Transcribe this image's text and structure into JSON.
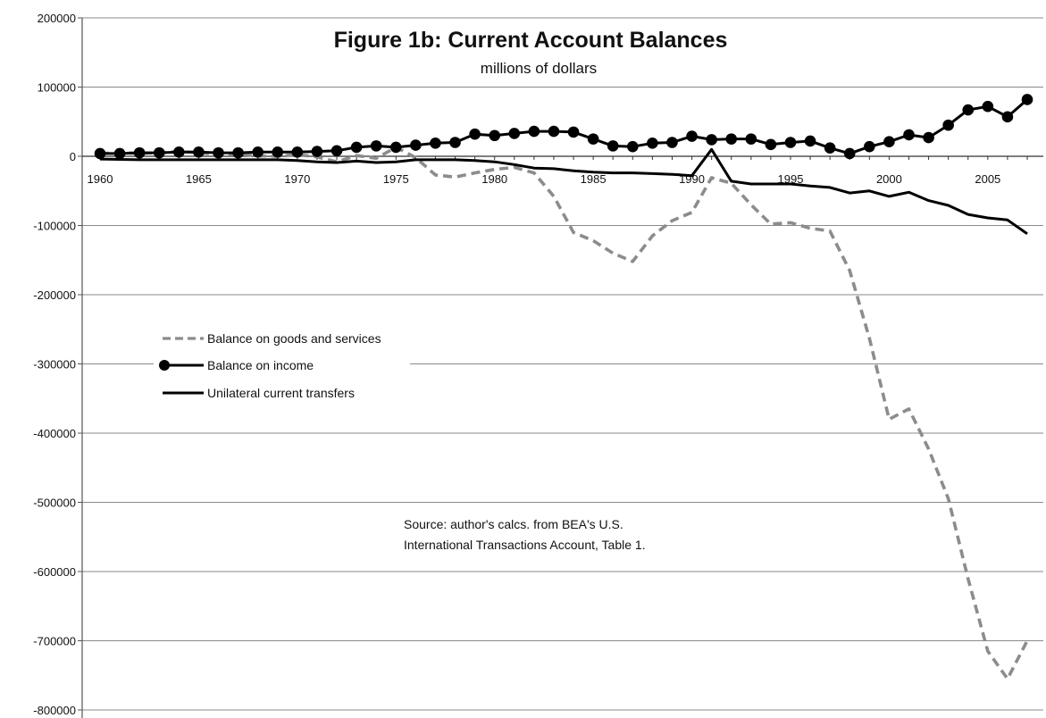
{
  "chart_data": {
    "type": "line",
    "title": "Figure 1b: Current Account Balances",
    "subtitle": "millions of dollars",
    "xlabel": "",
    "ylabel": "",
    "xlim": [
      1960,
      2007
    ],
    "ylim": [
      -800000,
      200000
    ],
    "yticks": [
      200000,
      100000,
      0,
      -100000,
      -200000,
      -300000,
      -400000,
      -500000,
      -600000,
      -700000,
      -800000
    ],
    "ytick_labels": [
      "200000",
      "100000",
      "0",
      "-100000",
      "-200000",
      "-300000",
      "-400000",
      "-500000",
      "-600000",
      "-700000",
      "-800000"
    ],
    "xticks": [
      1960,
      1965,
      1970,
      1975,
      1980,
      1985,
      1990,
      1995,
      2000,
      2005
    ],
    "xtick_labels": [
      "1960",
      "1965",
      "1970",
      "1975",
      "1980",
      "1985",
      "1990",
      "1995",
      "2000",
      "2005"
    ],
    "grid": "horizontal",
    "legend_position": "left-middle",
    "x": [
      1960,
      1961,
      1962,
      1963,
      1964,
      1965,
      1966,
      1967,
      1968,
      1969,
      1970,
      1971,
      1972,
      1973,
      1974,
      1975,
      1976,
      1977,
      1978,
      1979,
      1980,
      1981,
      1982,
      1983,
      1984,
      1985,
      1986,
      1987,
      1988,
      1989,
      1990,
      1991,
      1992,
      1993,
      1994,
      1995,
      1996,
      1997,
      1998,
      1999,
      2000,
      2001,
      2002,
      2003,
      2004,
      2005,
      2006,
      2007
    ],
    "series": [
      {
        "name": "Balance on goods and services",
        "style": "dashed",
        "color": "#8c8c8c",
        "markers": false,
        "values": [
          4000,
          5000,
          4500,
          5000,
          7000,
          5000,
          3000,
          3500,
          500,
          100,
          2500,
          -1000,
          -8000,
          1000,
          -3000,
          13000,
          -2000,
          -27000,
          -30000,
          -24000,
          -19000,
          -16000,
          -24000,
          -58000,
          -110000,
          -122000,
          -140000,
          -152000,
          -115000,
          -93000,
          -81000,
          -31000,
          -39000,
          -70000,
          -98000,
          -96000,
          -104000,
          -108000,
          -165000,
          -263000,
          -380000,
          -365000,
          -423000,
          -495000,
          -610000,
          -715000,
          -755000,
          -700000
        ]
      },
      {
        "name": "Balance on income",
        "style": "solid",
        "color": "#000000",
        "markers": true,
        "values": [
          4000,
          4000,
          5000,
          5000,
          6000,
          6000,
          5000,
          5000,
          6000,
          6000,
          6000,
          7000,
          8000,
          13000,
          15000,
          13000,
          16000,
          19000,
          20000,
          32000,
          30000,
          33000,
          36000,
          36000,
          35000,
          25000,
          15000,
          14000,
          19000,
          20000,
          29000,
          24000,
          25000,
          25000,
          17000,
          20000,
          22000,
          12000,
          4000,
          14000,
          21000,
          31000,
          27000,
          45000,
          67000,
          72000,
          57000,
          82000
        ]
      },
      {
        "name": "Unilateral current transfers",
        "style": "solid",
        "color": "#000000",
        "markers": false,
        "values": [
          -4000,
          -4500,
          -5000,
          -5000,
          -5000,
          -5000,
          -5000,
          -5000,
          -5000,
          -5000,
          -6000,
          -8000,
          -9000,
          -7000,
          -9000,
          -8000,
          -5000,
          -5000,
          -5000,
          -6000,
          -8000,
          -12000,
          -17000,
          -18000,
          -21000,
          -23000,
          -24000,
          -24000,
          -25000,
          -26000,
          -28000,
          10000,
          -36000,
          -40000,
          -40000,
          -40000,
          -43000,
          -45000,
          -53000,
          -50000,
          -58000,
          -52000,
          -64000,
          -71000,
          -84000,
          -89000,
          -92000,
          -112000
        ]
      }
    ],
    "annotation": [
      "Source: author's calcs. from BEA's U.S.",
      "International Transactions Account, Table 1."
    ]
  }
}
